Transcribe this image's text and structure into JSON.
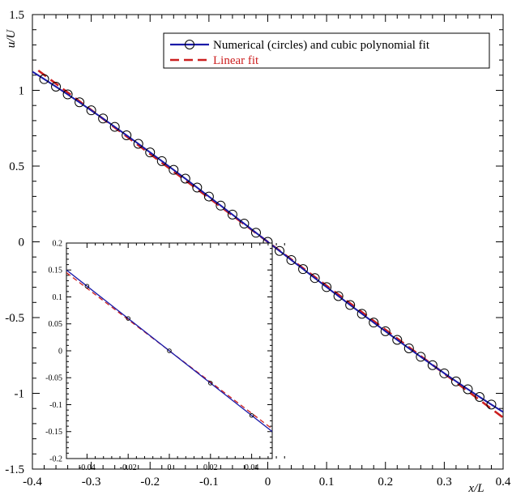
{
  "chart_data": [
    {
      "type": "line",
      "title": "",
      "xlabel": "x/L",
      "ylabel": "u/U",
      "xlim": [
        -0.4,
        0.4
      ],
      "ylim": [
        -1.5,
        1.5
      ],
      "x_ticks": [
        -0.4,
        -0.3,
        -0.2,
        -0.1,
        0,
        0.1,
        0.2,
        0.3,
        0.4
      ],
      "x_tick_labels": [
        "-0.4",
        "-0.3",
        "-0.2",
        "-0.1",
        "0",
        "0.1",
        "0.2",
        "0.3",
        "0.4"
      ],
      "y_ticks": [
        -1.5,
        -1,
        -0.5,
        0,
        0.5,
        1,
        1.5
      ],
      "y_tick_labels": [
        "-1.5",
        "-1",
        "-0.5",
        "0",
        "0.5",
        "1",
        "1.5"
      ],
      "grid": false,
      "legend_position": "top-right",
      "series": [
        {
          "name": "Numerical (circles) and cubic polynomial fit",
          "style": "solid line with open circle markers",
          "color": "#1a1aa8",
          "marker": "circle",
          "cubic_fit": {
            "c1": -3.0,
            "c3": 1.2
          },
          "x": [
            -0.38,
            -0.36,
            -0.34,
            -0.32,
            -0.3,
            -0.28,
            -0.26,
            -0.24,
            -0.22,
            -0.2,
            -0.18,
            -0.16,
            -0.14,
            -0.12,
            -0.1,
            -0.08,
            -0.06,
            -0.04,
            -0.02,
            0.0,
            0.02,
            0.04,
            0.06,
            0.08,
            0.1,
            0.12,
            0.14,
            0.16,
            0.18,
            0.2,
            0.22,
            0.24,
            0.26,
            0.28,
            0.3,
            0.32,
            0.34,
            0.36,
            0.38
          ],
          "y": [
            1.074,
            1.024,
            0.973,
            0.921,
            0.868,
            0.814,
            0.759,
            0.703,
            0.647,
            0.59,
            0.533,
            0.475,
            0.417,
            0.358,
            0.299,
            0.239,
            0.18,
            0.12,
            0.06,
            0.0,
            -0.06,
            -0.12,
            -0.18,
            -0.239,
            -0.299,
            -0.358,
            -0.417,
            -0.475,
            -0.533,
            -0.59,
            -0.647,
            -0.703,
            -0.759,
            -0.814,
            -0.868,
            -0.921,
            -0.973,
            -1.024,
            -1.074
          ]
        },
        {
          "name": "Linear fit",
          "style": "dashed line",
          "color": "#cc1f1f",
          "slope": -2.9,
          "intercept": 0.0,
          "x_range": [
            -0.39,
            0.4
          ]
        }
      ]
    },
    {
      "type": "line",
      "title": "",
      "xlabel": "",
      "ylabel": "",
      "xlim": [
        -0.05,
        0.05
      ],
      "ylim": [
        -0.2,
        0.2
      ],
      "x_ticks": [
        -0.04,
        -0.02,
        0,
        0.02,
        0.04
      ],
      "x_tick_labels": [
        "-0.04",
        "-0.02",
        "0",
        "0.02",
        "0.04"
      ],
      "y_ticks": [
        -0.2,
        -0.15,
        -0.1,
        -0.05,
        0,
        0.05,
        0.1,
        0.15,
        0.2
      ],
      "y_tick_labels": [
        "-0.2",
        "-0.15",
        "-0.1",
        "-0.05",
        "0",
        "0.05",
        "0.1",
        "0.15",
        "0.2"
      ],
      "grid": false,
      "legend_position": "none",
      "series": [
        {
          "name": "Numerical (circles) and cubic polynomial fit",
          "style": "solid line with open circle markers",
          "color": "#1a1aa8",
          "marker": "circle",
          "slope": -3.0,
          "x_range": [
            -0.05,
            0.05
          ],
          "x": [
            -0.04,
            -0.02,
            0.0,
            0.02,
            0.04
          ],
          "y": [
            0.12,
            0.06,
            0.0,
            -0.06,
            -0.12
          ]
        },
        {
          "name": "Linear fit",
          "style": "dashed line",
          "color": "#cc1f1f",
          "slope": -2.9,
          "x_range": [
            -0.05,
            0.05
          ]
        }
      ]
    }
  ]
}
